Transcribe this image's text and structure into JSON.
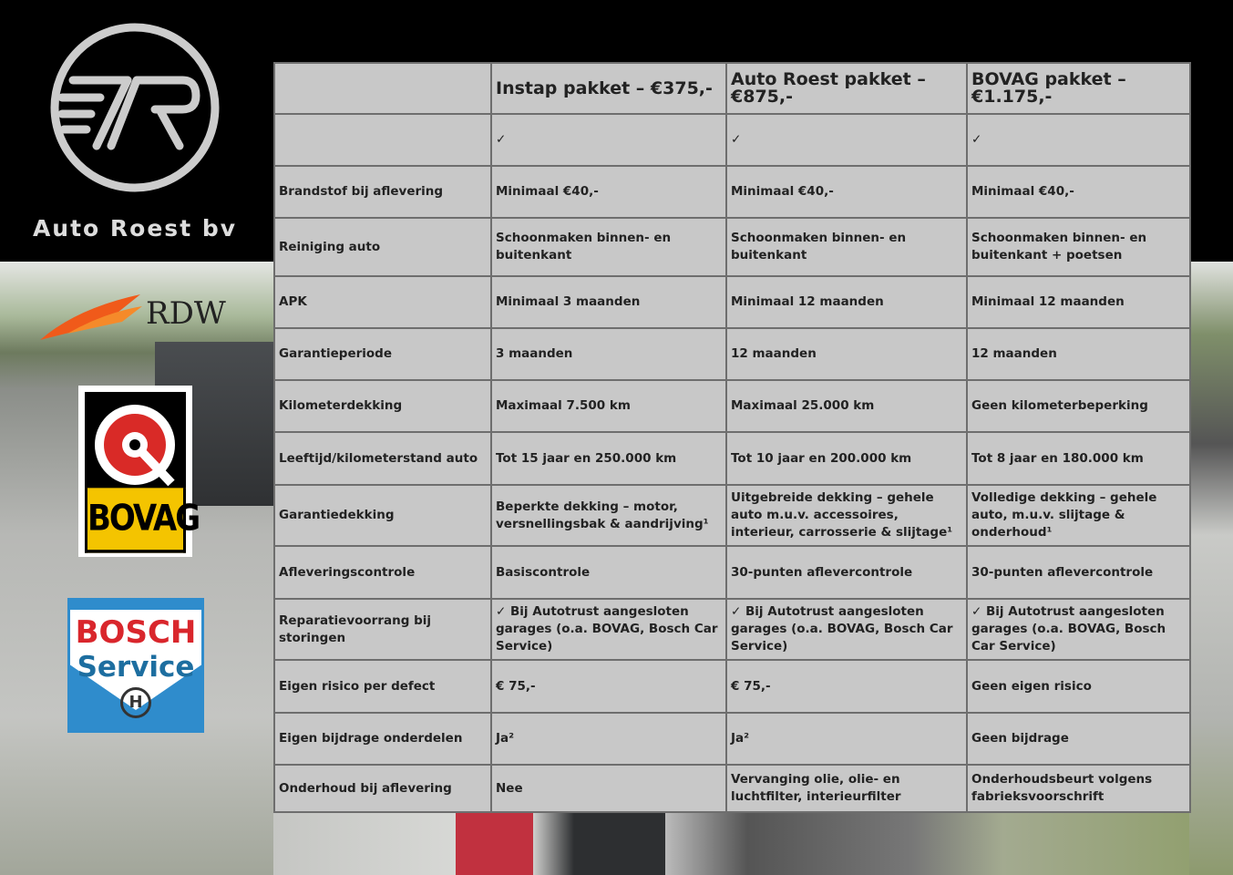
{
  "brand": {
    "name": "Auto Roest bv",
    "rdw": "RDW",
    "bovag": "BOVAG",
    "bosch_line1": "BOSCH",
    "bosch_line2": "Service"
  },
  "table": {
    "headers": [
      "",
      "Instap pakket – €375,-",
      "Auto Roest pakket – €875,-",
      "BOVAG pakket – €1.175,-"
    ],
    "rows": [
      [
        "",
        "✓",
        "✓",
        "✓"
      ],
      [
        "Brandstof bij aflevering",
        "Minimaal €40,-",
        "Minimaal €40,-",
        "Minimaal €40,-"
      ],
      [
        "Reiniging auto",
        "Schoonmaken binnen- en buitenkant",
        "Schoonmaken binnen- en buitenkant",
        "Schoonmaken binnen- en buitenkant + poetsen"
      ],
      [
        "APK",
        "Minimaal 3 maanden",
        "Minimaal 12 maanden",
        "Minimaal 12 maanden"
      ],
      [
        "Garantieperiode",
        "3 maanden",
        "12 maanden",
        "12 maanden"
      ],
      [
        "Kilometerdekking",
        "Maximaal 7.500 km",
        "Maximaal 25.000 km",
        "Geen kilometerbeperking"
      ],
      [
        "Leeftijd/kilometerstand auto",
        "Tot 15 jaar en 250.000 km",
        "Tot 10 jaar en 200.000 km",
        "Tot 8 jaar en 180.000 km"
      ],
      [
        "Garantiedekking",
        "Beperkte dekking – motor, versnellingsbak & aandrijving¹",
        "Uitgebreide dekking – gehele auto m.u.v. accessoires, interieur, carrosserie & slijtage¹",
        "Volledige dekking – gehele auto, m.u.v. slijtage & onderhoud¹"
      ],
      [
        "Afleveringscontrole",
        "Basiscontrole",
        "30-punten aflevercontrole",
        "30-punten aflevercontrole"
      ],
      [
        "Reparatievoorrang bij storingen",
        "✓ Bij Autotrust aangesloten garages (o.a. BOVAG, Bosch Car Service)",
        "✓ Bij Autotrust aangesloten garages (o.a. BOVAG, Bosch Car Service)",
        "✓ Bij Autotrust aangesloten garages (o.a. BOVAG, Bosch Car Service)"
      ],
      [
        "Eigen risico per defect",
        "€ 75,-",
        "€ 75,-",
        "Geen eigen risico"
      ],
      [
        "Eigen bijdrage onderdelen",
        "Ja²",
        "Ja²",
        "Geen bijdrage"
      ],
      [
        "Onderhoud bij aflevering",
        "Nee",
        "Vervanging olie, olie- en luchtfilter, interieurfilter",
        "Onderhoudsbeurt volgens fabrieksvoorschrift"
      ]
    ]
  }
}
